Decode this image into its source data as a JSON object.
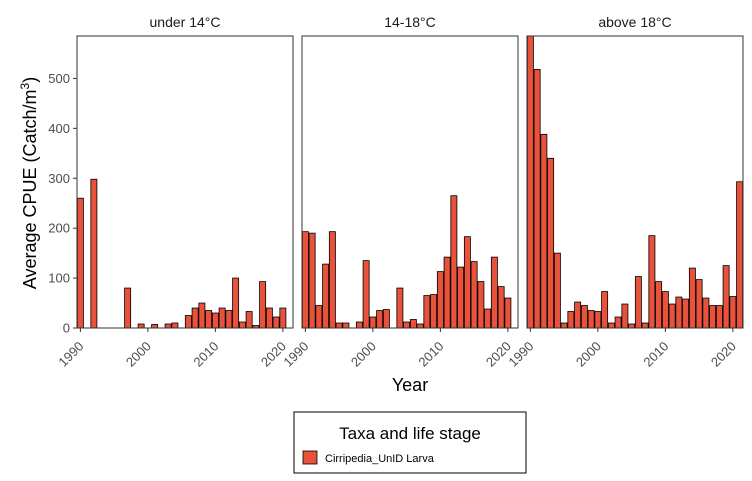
{
  "chart_data": {
    "type": "bar",
    "xlabel": "Year",
    "ylabel_main": "Average CPUE (Catch/m",
    "ylabel_sup": "3",
    "ylabel_close": ")",
    "ylim": [
      0,
      585
    ],
    "yticks": [
      0,
      100,
      200,
      300,
      400,
      500
    ],
    "xlim": [
      1989.5,
      2021.5
    ],
    "xticks": [
      1990,
      2000,
      2010,
      2020
    ],
    "bar_color": "#e8523a",
    "bar_edge": "#000000",
    "legend_title": "Taxa and life stage",
    "legend": [
      {
        "name": "Cirripedia_UnID Larva",
        "color": "#e8523a"
      }
    ],
    "panels": [
      {
        "title": "under 14°C",
        "x": [
          1990,
          1992,
          1997,
          1999,
          2001,
          2003,
          2004,
          2006,
          2007,
          2008,
          2009,
          2010,
          2011,
          2012,
          2013,
          2014,
          2015,
          2016,
          2017,
          2018,
          2019,
          2020
        ],
        "values": [
          260,
          298,
          80,
          8,
          7,
          8,
          10,
          25,
          40,
          50,
          35,
          30,
          40,
          35,
          100,
          12,
          33,
          5,
          93,
          40,
          22,
          40
        ]
      },
      {
        "title": "14-18°C",
        "x": [
          1990,
          1991,
          1992,
          1993,
          1994,
          1995,
          1996,
          1998,
          1999,
          2000,
          2001,
          2002,
          2004,
          2005,
          2006,
          2007,
          2008,
          2009,
          2010,
          2011,
          2012,
          2013,
          2014,
          2015,
          2016,
          2017,
          2018,
          2019,
          2020
        ],
        "values": [
          193,
          190,
          45,
          128,
          193,
          10,
          10,
          12,
          135,
          22,
          35,
          37,
          80,
          12,
          17,
          8,
          65,
          67,
          113,
          142,
          265,
          122,
          183,
          133,
          93,
          38,
          142,
          83,
          60
        ]
      },
      {
        "title": "above 18°C",
        "x": [
          1990,
          1991,
          1992,
          1993,
          1994,
          1995,
          1996,
          1997,
          1998,
          1999,
          2000,
          2001,
          2002,
          2003,
          2004,
          2005,
          2006,
          2007,
          2008,
          2009,
          2010,
          2011,
          2012,
          2013,
          2014,
          2015,
          2016,
          2017,
          2018,
          2019,
          2020,
          2021
        ],
        "values": [
          585,
          518,
          388,
          340,
          150,
          10,
          33,
          52,
          45,
          35,
          33,
          73,
          10,
          22,
          48,
          8,
          103,
          10,
          185,
          93,
          73,
          48,
          62,
          58,
          120,
          97,
          60,
          45,
          45,
          125,
          63,
          293
        ]
      }
    ]
  }
}
